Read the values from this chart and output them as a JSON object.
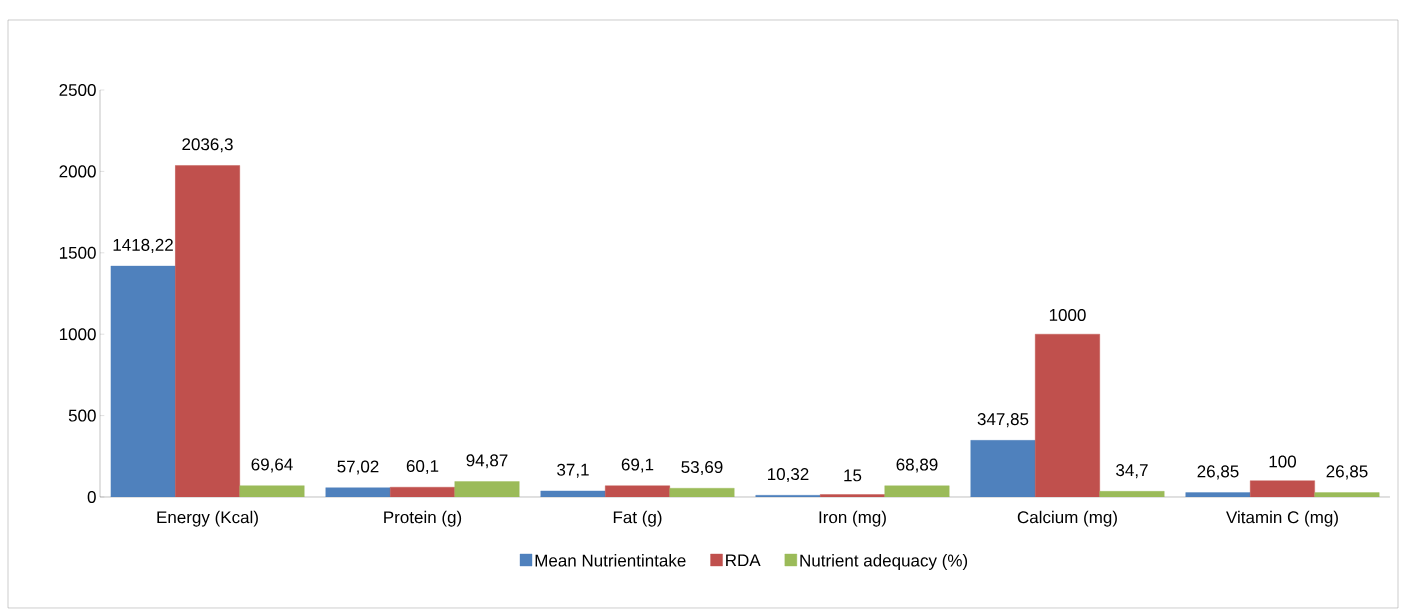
{
  "chart_data": {
    "type": "bar",
    "categories": [
      "Energy (Kcal)",
      "Protein (g)",
      "Fat (g)",
      "Iron (mg)",
      "Calcium (mg)",
      "Vitamin C (mg)"
    ],
    "series": [
      {
        "name": "Mean Nutrientintake",
        "color": "#4f81bd",
        "values": [
          1418.22,
          57.02,
          37.1,
          10.32,
          347.85,
          26.85
        ],
        "value_labels": [
          "1418,22",
          "57,02",
          "37,1",
          "10,32",
          "347,85",
          "26,85"
        ]
      },
      {
        "name": "RDA",
        "color": "#c0504d",
        "values": [
          2036.3,
          60.1,
          69.1,
          15,
          1000,
          100
        ],
        "value_labels": [
          "2036,3",
          "60,1",
          "69,1",
          "15",
          "1000",
          "100"
        ]
      },
      {
        "name": "Nutrient adequacy (%)",
        "color": "#9bbb59",
        "values": [
          69.64,
          94.87,
          53.69,
          68.89,
          34.7,
          26.85
        ],
        "value_labels": [
          "69,64",
          "94,87",
          "53,69",
          "68,89",
          "34,7",
          "26,85"
        ]
      }
    ],
    "ylim": [
      0,
      2500
    ],
    "yticks": [
      0,
      500,
      1000,
      1500,
      2000,
      2500
    ],
    "grid": false,
    "legend": "bottom"
  }
}
